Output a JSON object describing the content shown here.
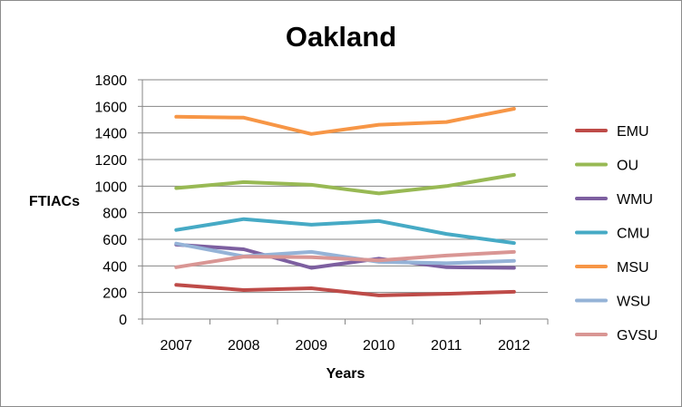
{
  "chart_data": {
    "type": "line",
    "title": "Oakland",
    "xlabel": "Years",
    "ylabel": "FTIACs",
    "categories": [
      "2007",
      "2008",
      "2009",
      "2010",
      "2011",
      "2012"
    ],
    "ylim": [
      0,
      1800
    ],
    "yticks": [
      0,
      200,
      400,
      600,
      800,
      1000,
      1200,
      1400,
      1600,
      1800
    ],
    "grid": true,
    "legend_position": "right",
    "series": [
      {
        "name": "EMU",
        "color": "#be4b48",
        "values": [
          258,
          218,
          232,
          178,
          190,
          205
        ]
      },
      {
        "name": "OU",
        "color": "#98b954",
        "values": [
          985,
          1030,
          1010,
          945,
          1000,
          1085
        ]
      },
      {
        "name": "WMU",
        "color": "#7d5fa0",
        "values": [
          560,
          525,
          385,
          455,
          390,
          385
        ]
      },
      {
        "name": "CMU",
        "color": "#46aac5",
        "values": [
          670,
          752,
          710,
          738,
          640,
          572
        ]
      },
      {
        "name": "MSU",
        "color": "#f79646",
        "values": [
          1522,
          1515,
          1392,
          1462,
          1482,
          1582
        ]
      },
      {
        "name": "WSU",
        "color": "#95b3d7",
        "values": [
          568,
          472,
          505,
          430,
          420,
          438
        ]
      },
      {
        "name": "GVSU",
        "color": "#d99694",
        "values": [
          390,
          470,
          465,
          442,
          478,
          505
        ]
      }
    ]
  }
}
